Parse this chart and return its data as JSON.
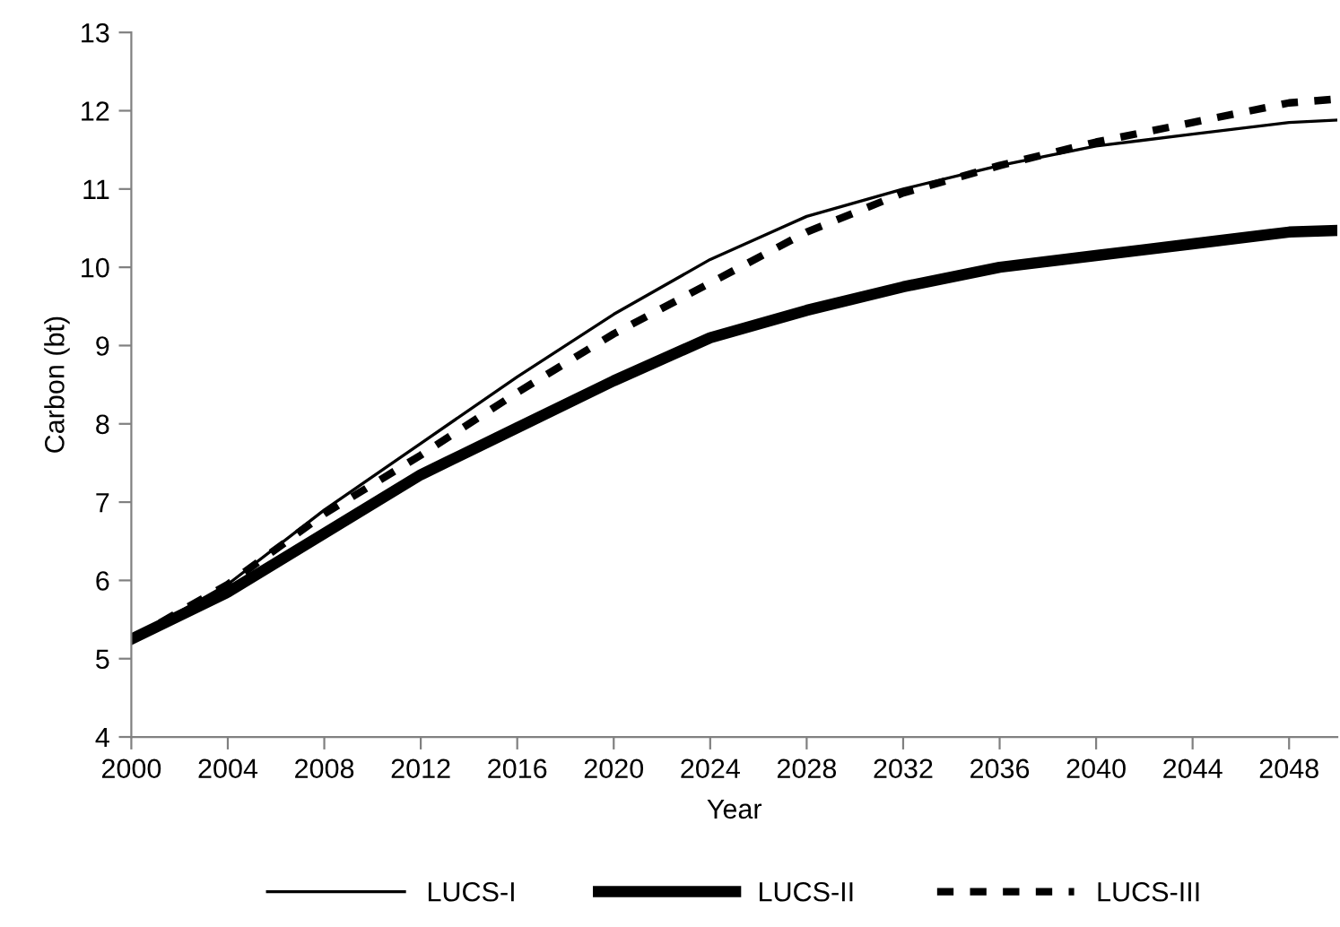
{
  "chart_data": {
    "type": "line",
    "xlabel": "Year",
    "ylabel": "Carbon (bt)",
    "x": [
      2000,
      2004,
      2008,
      2012,
      2016,
      2020,
      2024,
      2028,
      2032,
      2036,
      2040,
      2044,
      2048,
      2050
    ],
    "series": [
      {
        "name": "LUCS-I",
        "color": "#000000",
        "line_style": "solid",
        "values": [
          5.25,
          5.95,
          6.9,
          7.75,
          8.6,
          9.4,
          10.1,
          10.65,
          11.0,
          11.3,
          11.55,
          11.7,
          11.85,
          11.88
        ]
      },
      {
        "name": "LUCS-II",
        "color": "#000000",
        "line_style": "solid",
        "values": [
          5.25,
          5.85,
          6.6,
          7.35,
          7.95,
          8.55,
          9.1,
          9.45,
          9.75,
          10.0,
          10.15,
          10.3,
          10.45,
          10.47
        ]
      },
      {
        "name": "LUCS-III",
        "color": "#000000",
        "line_style": "dashed",
        "values": [
          5.25,
          5.95,
          6.85,
          7.6,
          8.4,
          9.15,
          9.8,
          10.45,
          10.95,
          11.3,
          11.6,
          11.85,
          12.1,
          12.15
        ]
      }
    ],
    "xlim": [
      2000,
      2050
    ],
    "xticks": [
      2000,
      2004,
      2008,
      2012,
      2016,
      2020,
      2024,
      2028,
      2032,
      2036,
      2040,
      2044,
      2048
    ],
    "ylim": [
      4,
      13
    ],
    "yticks": [
      4,
      5,
      6,
      7,
      8,
      9,
      10,
      11,
      12,
      13
    ],
    "grid": false,
    "legend": "bottom",
    "marker": "none"
  }
}
